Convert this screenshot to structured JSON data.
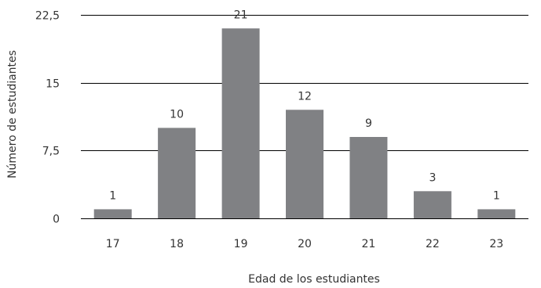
{
  "chart_data": {
    "type": "bar",
    "categories": [
      "17",
      "18",
      "19",
      "20",
      "21",
      "22",
      "23"
    ],
    "values": [
      1,
      10,
      21,
      12,
      9,
      3,
      1
    ],
    "data_labels": [
      "1",
      "10",
      "21",
      "12",
      "9",
      "3",
      "1"
    ],
    "xlabel": "Edad de los estudiantes",
    "ylabel": "Número de estudiantes",
    "ylim": [
      0,
      22.5
    ],
    "yticks": [
      0,
      7.5,
      15,
      22.5
    ],
    "ytick_labels": [
      "0",
      "7,5",
      "15",
      "22,5"
    ],
    "grid": true,
    "bar_color": "#808184",
    "gridline_color": "#000000"
  }
}
